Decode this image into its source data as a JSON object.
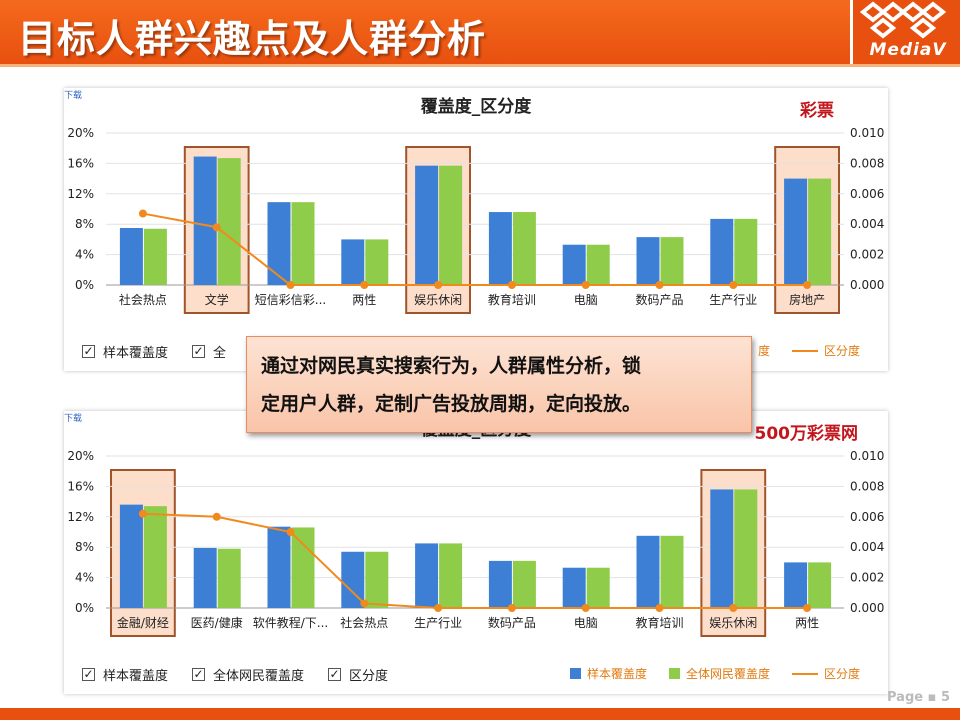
{
  "header": {
    "title": "目标人群兴趣点及人群分析",
    "logo_text": "MediaV",
    "logo_icon": "diamond-lattice-logo"
  },
  "callout": {
    "line1": "通过对网民真实搜索行为，人群属性分析，锁",
    "line2": "定用户人群，定制广告投放周期，定向投放。"
  },
  "page": {
    "label": "Page",
    "number": "5"
  },
  "colors": {
    "sample": "#3e7fd6",
    "all": "#8fcc4a",
    "line": "#f08a1d",
    "highlight_fill": "#fbd3b9",
    "highlight_stroke": "#a0542a",
    "header": "#e8500f",
    "tag": "#c3161c"
  },
  "chart_data": [
    {
      "type": "bar",
      "download_label": "下载",
      "title": "覆盖度_区分度",
      "tag": "彩票",
      "categories": [
        "社会热点",
        "文学",
        "短信彩信彩...",
        "两性",
        "娱乐休闲",
        "教育培训",
        "电脑",
        "数码产品",
        "生产行业",
        "房地产"
      ],
      "series": [
        {
          "name": "样本覆盖度",
          "axis": "left",
          "values": [
            7.5,
            16.9,
            10.9,
            6.0,
            15.7,
            9.6,
            5.3,
            6.3,
            8.7,
            14.0
          ]
        },
        {
          "name": "全体网民覆盖度",
          "axis": "left",
          "values": [
            7.4,
            16.7,
            10.9,
            6.0,
            15.7,
            9.6,
            5.3,
            6.3,
            8.7,
            14.0
          ]
        },
        {
          "name": "区分度",
          "type": "line",
          "axis": "right",
          "values": [
            0.0047,
            0.0038,
            0.0,
            0.0,
            0.0,
            0.0,
            0.0,
            0.0,
            0.0,
            0.0
          ]
        }
      ],
      "highlighted": [
        "文学",
        "娱乐休闲",
        "房地产"
      ],
      "y_left": {
        "ticks": [
          "0%",
          "4%",
          "8%",
          "12%",
          "16%",
          "20%"
        ],
        "ylim": [
          0,
          20
        ]
      },
      "y_right": {
        "ticks": [
          "0.000",
          "0.002",
          "0.004",
          "0.006",
          "0.008",
          "0.010"
        ],
        "ylim": [
          0,
          0.01
        ]
      },
      "checkbox_legend": [
        "样本覆盖度",
        "全"
      ],
      "color_legend": [
        "度",
        "区分度"
      ]
    },
    {
      "type": "bar",
      "download_label": "下载",
      "title": "覆盖度_区分度",
      "tag": "500万彩票网",
      "categories": [
        "金融/财经",
        "医药/健康",
        "软件教程/下...",
        "社会热点",
        "生产行业",
        "数码产品",
        "电脑",
        "教育培训",
        "娱乐休闲",
        "两性"
      ],
      "series": [
        {
          "name": "样本覆盖度",
          "axis": "left",
          "values": [
            13.6,
            7.9,
            10.7,
            7.4,
            8.5,
            6.2,
            5.3,
            9.5,
            15.6,
            6.0
          ]
        },
        {
          "name": "全体网民覆盖度",
          "axis": "left",
          "values": [
            13.4,
            7.8,
            10.6,
            7.4,
            8.5,
            6.2,
            5.3,
            9.5,
            15.6,
            6.0
          ]
        },
        {
          "name": "区分度",
          "type": "line",
          "axis": "right",
          "values": [
            0.0062,
            0.006,
            0.005,
            0.0003,
            0.0,
            0.0,
            0.0,
            0.0,
            0.0,
            0.0
          ]
        }
      ],
      "highlighted": [
        "金融/财经",
        "娱乐休闲"
      ],
      "y_left": {
        "ticks": [
          "0%",
          "4%",
          "8%",
          "12%",
          "16%",
          "20%"
        ],
        "ylim": [
          0,
          20
        ]
      },
      "y_right": {
        "ticks": [
          "0.000",
          "0.002",
          "0.004",
          "0.006",
          "0.008",
          "0.010"
        ],
        "ylim": [
          0,
          0.01
        ]
      },
      "checkbox_legend": [
        "样本覆盖度",
        "全体网民覆盖度",
        "区分度"
      ],
      "color_legend": [
        "样本覆盖度",
        "全体网民覆盖度",
        "区分度"
      ]
    }
  ]
}
